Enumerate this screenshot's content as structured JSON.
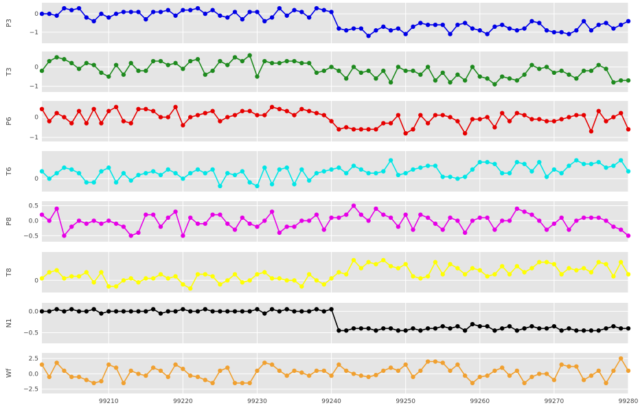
{
  "chart_data": {
    "type": "line",
    "xlim": [
      99201,
      99280
    ],
    "x_start": 99201,
    "x_ticks": [
      99210,
      99220,
      99230,
      99240,
      99250,
      99260,
      99270,
      99280
    ],
    "grid": true,
    "series": [
      {
        "name": "P3",
        "color": "#0000e6",
        "ylim": [
          -1.6,
          0.6
        ],
        "yticks": [
          0,
          -1
        ],
        "ytick_labels": [
          "0",
          "−1"
        ],
        "values": [
          0,
          0,
          -0.1,
          0.3,
          0.2,
          0.3,
          -0.2,
          -0.4,
          0,
          -0.2,
          0,
          0.1,
          0.1,
          0.1,
          -0.3,
          0.1,
          0.1,
          0.2,
          -0.1,
          0.2,
          0.2,
          0.3,
          0,
          0.2,
          -0.1,
          -0.2,
          0.1,
          -0.3,
          0.1,
          0.1,
          -0.4,
          -0.2,
          0.3,
          -0.1,
          0.2,
          0.1,
          -0.2,
          0.3,
          0.2,
          0.1,
          -0.8,
          -0.9,
          -0.8,
          -0.8,
          -1.2,
          -0.9,
          -0.7,
          -0.9,
          -0.8,
          -1.1,
          -0.7,
          -0.5,
          -0.6,
          -0.6,
          -0.6,
          -1.1,
          -0.6,
          -0.5,
          -0.8,
          -0.9,
          -1.1,
          -0.7,
          -0.6,
          -0.8,
          -0.9,
          -0.8,
          -0.4,
          -0.5,
          -0.9,
          -1.0,
          -1.0,
          -1.1,
          -0.9,
          -0.4,
          -0.9,
          -0.6,
          -0.5,
          -0.8,
          -0.6,
          -0.4
        ]
      },
      {
        "name": "T3",
        "color": "#1e8a1e",
        "ylim": [
          -1.3,
          0.8
        ],
        "yticks": [
          0,
          -1
        ],
        "ytick_labels": [
          "0",
          "−1"
        ],
        "values": [
          -0.2,
          0.3,
          0.5,
          0.4,
          0.2,
          -0.1,
          0.2,
          0.1,
          -0.3,
          -0.5,
          0.1,
          -0.4,
          0.2,
          -0.2,
          -0.2,
          0.3,
          0.3,
          0.1,
          0.2,
          -0.1,
          0.3,
          0.4,
          -0.4,
          -0.2,
          0.3,
          0.1,
          0.5,
          0.3,
          0.6,
          -0.5,
          0.3,
          0.2,
          0.2,
          0.3,
          0.3,
          0.2,
          0.2,
          -0.3,
          -0.2,
          0.0,
          -0.2,
          -0.6,
          0.0,
          -0.3,
          -0.2,
          -0.6,
          -0.2,
          -0.8,
          0.0,
          -0.2,
          -0.2,
          -0.4,
          0.0,
          -0.7,
          -0.3,
          -0.8,
          -0.4,
          -0.7,
          0.0,
          -0.5,
          -0.6,
          -0.9,
          -0.5,
          -0.6,
          -0.7,
          -0.4,
          0.1,
          -0.1,
          0.0,
          -0.3,
          -0.2,
          -0.4,
          -0.6,
          -0.2,
          -0.2,
          0.1,
          -0.1,
          -0.8,
          -0.7,
          -0.7
        ]
      },
      {
        "name": "P6",
        "color": "#e60000",
        "ylim": [
          -1.2,
          0.8
        ],
        "yticks": [
          0,
          -1
        ],
        "ytick_labels": [
          "0",
          "−1"
        ],
        "values": [
          0.4,
          -0.2,
          0.2,
          0.0,
          -0.3,
          0.3,
          -0.3,
          0.4,
          -0.3,
          0.3,
          0.5,
          -0.2,
          -0.3,
          0.4,
          0.4,
          0.3,
          0.0,
          0.0,
          0.5,
          -0.4,
          0.0,
          0.1,
          0.2,
          0.3,
          -0.2,
          0.0,
          0.1,
          0.3,
          0.3,
          0.1,
          0.1,
          0.5,
          0.4,
          0.3,
          0.1,
          0.4,
          0.3,
          0.2,
          0.1,
          -0.2,
          -0.6,
          -0.5,
          -0.6,
          -0.6,
          -0.6,
          -0.6,
          -0.3,
          -0.3,
          0.1,
          -0.8,
          -0.6,
          0.1,
          -0.3,
          0.1,
          0.1,
          0.0,
          -0.2,
          -0.8,
          -0.1,
          -0.1,
          0.0,
          -0.5,
          0.2,
          -0.2,
          0.2,
          0.1,
          -0.1,
          -0.1,
          -0.2,
          -0.2,
          -0.1,
          0.0,
          0.1,
          0.1,
          -0.7,
          0.3,
          -0.2,
          0.0,
          0.2,
          -0.6
        ]
      },
      {
        "name": "T6",
        "color": "#00e6e6",
        "ylim": [
          -0.7,
          1.5
        ],
        "yticks": [
          0
        ],
        "ytick_labels": [
          "0"
        ],
        "values": [
          0.4,
          0.0,
          0.3,
          0.6,
          0.5,
          0.3,
          -0.2,
          -0.2,
          0.4,
          0.6,
          -0.2,
          0.3,
          -0.1,
          0.2,
          0.3,
          0.4,
          0.2,
          0.5,
          0.3,
          0.0,
          0.3,
          0.5,
          0.3,
          0.5,
          -0.4,
          0.3,
          0.2,
          0.4,
          -0.2,
          -0.4,
          0.6,
          -0.3,
          0.5,
          0.6,
          -0.3,
          0.5,
          -0.1,
          0.3,
          0.4,
          0.5,
          0.6,
          0.3,
          0.7,
          0.5,
          0.3,
          0.3,
          0.4,
          1.0,
          0.2,
          0.3,
          0.5,
          0.6,
          0.7,
          0.7,
          0.1,
          0.1,
          0.0,
          0.1,
          0.5,
          0.9,
          0.9,
          0.8,
          0.3,
          0.3,
          0.9,
          0.8,
          0.4,
          0.9,
          0.1,
          0.5,
          0.3,
          0.7,
          1.0,
          0.8,
          0.8,
          0.9,
          0.6,
          0.7,
          1.0,
          0.4
        ]
      },
      {
        "name": "P8",
        "color": "#e600e6",
        "ylim": [
          -0.7,
          0.65
        ],
        "yticks": [
          0.5,
          0.0,
          -0.5
        ],
        "ytick_labels": [
          "0.5",
          "0.0",
          "−0.5"
        ],
        "values": [
          0.2,
          0.0,
          0.4,
          -0.5,
          -0.2,
          0.0,
          -0.1,
          0.0,
          -0.1,
          0.0,
          -0.1,
          -0.2,
          -0.5,
          -0.4,
          0.2,
          0.2,
          -0.2,
          0.1,
          0.3,
          -0.5,
          0.1,
          -0.1,
          -0.1,
          0.2,
          0.2,
          -0.1,
          -0.3,
          0.1,
          -0.1,
          -0.2,
          0.0,
          0.3,
          -0.4,
          -0.2,
          -0.2,
          0.0,
          0.0,
          0.2,
          -0.3,
          0.1,
          0.1,
          0.2,
          0.5,
          0.2,
          0.0,
          0.4,
          0.2,
          0.1,
          -0.2,
          0.2,
          -0.3,
          0.2,
          0.1,
          -0.1,
          -0.3,
          0.1,
          0.0,
          -0.4,
          0.0,
          0.1,
          0.1,
          -0.3,
          0.0,
          0.0,
          0.4,
          0.3,
          0.2,
          0.0,
          -0.3,
          -0.1,
          0.1,
          -0.3,
          0.0,
          0.1,
          0.1,
          0.1,
          0.0,
          -0.2,
          -0.3,
          -0.5
        ]
      },
      {
        "name": "T8",
        "color": "#ffff00",
        "ylim": [
          -0.6,
          1.4
        ],
        "yticks": [
          0
        ],
        "ytick_labels": [
          "0"
        ],
        "values": [
          0.1,
          0.4,
          0.5,
          0.1,
          0.2,
          0.2,
          0.4,
          -0.1,
          0.4,
          -0.3,
          -0.3,
          0.0,
          0.1,
          -0.1,
          0.1,
          0.1,
          0.3,
          0.1,
          0.2,
          -0.2,
          -0.4,
          0.3,
          0.3,
          0.2,
          -0.2,
          0.0,
          0.3,
          -0.1,
          0.0,
          0.3,
          0.4,
          0.1,
          0.1,
          0.0,
          0.0,
          -0.3,
          0.3,
          0.0,
          -0.2,
          0.1,
          0.4,
          0.3,
          1.0,
          0.6,
          0.9,
          0.8,
          1.0,
          0.7,
          0.6,
          0.8,
          0.2,
          0.1,
          0.2,
          0.9,
          0.3,
          0.8,
          0.6,
          0.3,
          0.6,
          0.5,
          0.2,
          0.3,
          0.7,
          0.3,
          0.7,
          0.4,
          0.6,
          0.9,
          0.9,
          0.8,
          0.3,
          0.6,
          0.5,
          0.6,
          0.4,
          0.9,
          0.8,
          0.2,
          0.9,
          0.3
        ]
      },
      {
        "name": "N1",
        "color": "#000000",
        "ylim": [
          -0.75,
          0.2
        ],
        "yticks": [
          0.0,
          -0.5
        ],
        "ytick_labels": [
          "0.0",
          "−0.5"
        ],
        "values": [
          0.0,
          0.0,
          0.05,
          0.0,
          0.05,
          0.0,
          0.0,
          0.05,
          -0.05,
          0.0,
          0.0,
          0.0,
          0.0,
          0.0,
          0.0,
          0.05,
          -0.05,
          0.0,
          0.0,
          0.05,
          0.0,
          0.0,
          0.05,
          0.0,
          0.0,
          0.0,
          0.0,
          0.0,
          0.0,
          0.05,
          -0.05,
          0.05,
          0.0,
          0.05,
          0.0,
          0.0,
          0.0,
          0.05,
          0.0,
          0.05,
          -0.45,
          -0.45,
          -0.4,
          -0.4,
          -0.4,
          -0.45,
          -0.4,
          -0.4,
          -0.45,
          -0.45,
          -0.4,
          -0.45,
          -0.4,
          -0.4,
          -0.35,
          -0.4,
          -0.35,
          -0.45,
          -0.3,
          -0.35,
          -0.35,
          -0.45,
          -0.4,
          -0.35,
          -0.45,
          -0.4,
          -0.35,
          -0.4,
          -0.4,
          -0.35,
          -0.45,
          -0.4,
          -0.45,
          -0.45,
          -0.45,
          -0.45,
          -0.4,
          -0.35,
          -0.4,
          -0.4
        ]
      },
      {
        "name": "Wf",
        "color": "#f0a030",
        "ylim": [
          -3.2,
          3.4
        ],
        "yticks": [
          2.5,
          0.0,
          -2.5
        ],
        "ytick_labels": [
          "2.5",
          "0.0",
          "−2.5"
        ],
        "values": [
          1.5,
          -0.5,
          1.8,
          0.5,
          -0.5,
          -0.5,
          -1.0,
          -1.5,
          -1.2,
          1.5,
          1.0,
          -1.5,
          0.5,
          0.0,
          -0.3,
          1.0,
          0.5,
          -0.5,
          1.5,
          0.8,
          -0.3,
          -0.5,
          -1.0,
          -1.5,
          0.5,
          1.0,
          -1.5,
          -1.5,
          -1.5,
          0.5,
          1.8,
          1.5,
          0.5,
          -0.3,
          0.5,
          0.2,
          -0.3,
          0.5,
          0.5,
          -0.3,
          1.5,
          0.5,
          0.0,
          -0.3,
          -0.5,
          -0.2,
          0.5,
          1.0,
          0.5,
          1.5,
          -0.5,
          0.5,
          2.0,
          2.0,
          1.8,
          0.5,
          1.5,
          -0.3,
          -1.5,
          -0.5,
          -0.3,
          0.5,
          1.0,
          -0.3,
          0.5,
          -1.5,
          -0.5,
          0.0,
          0.0,
          -1.0,
          1.5,
          1.2,
          1.2,
          -1.0,
          -0.3,
          0.5,
          -1.5,
          0.5,
          2.5,
          0.5
        ]
      }
    ]
  }
}
